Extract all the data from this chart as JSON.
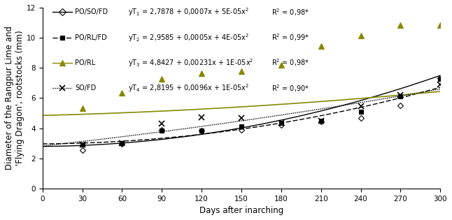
{
  "xlabel": "Days after inarching",
  "ylabel": "Diameter of the Rangpur Lime and\n'Flying Dragon', rootstocks (mm)",
  "xlim": [
    0,
    300
  ],
  "ylim": [
    0,
    12
  ],
  "xticks": [
    0,
    30,
    60,
    90,
    120,
    150,
    180,
    210,
    240,
    270,
    300
  ],
  "yticks": [
    0,
    2,
    4,
    6,
    8,
    10,
    12
  ],
  "series": [
    {
      "label": "PO/SO/FD",
      "eq_text": "yT",
      "eq_sub": "1",
      "eq_rest": " = 2,7878 + 0,0007x + 5E-05x",
      "eq_exp": "2",
      "r2_text": "R",
      "r2_exp": "2",
      "r2_rest": " = 0,98*",
      "a": 2.7878,
      "b": 0.0007,
      "c": 5e-05,
      "marker": "D",
      "markersize": 4.5,
      "color": "black",
      "linestyle": "solid",
      "fillstyle": "none",
      "data_x": [
        30,
        60,
        90,
        120,
        150,
        180,
        210,
        240,
        270,
        300
      ],
      "data_y": [
        2.55,
        2.95,
        3.9,
        3.85,
        3.9,
        4.2,
        4.45,
        4.65,
        5.5,
        7.3
      ]
    },
    {
      "label": "PO/RL/FD",
      "eq_text": "yT",
      "eq_sub": "2",
      "eq_rest": " = 2,9585 + 0,0005x + 4E-05x",
      "eq_exp": "2",
      "r2_text": "R",
      "r2_exp": "2",
      "r2_rest": " = 0,99*",
      "a": 2.9585,
      "b": 0.0005,
      "c": 4e-05,
      "marker": "s",
      "markersize": 4.5,
      "color": "black",
      "linestyle": "dashed",
      "fillstyle": "full",
      "data_x": [
        30,
        60,
        90,
        120,
        150,
        180,
        210,
        240,
        270,
        300
      ],
      "data_y": [
        2.9,
        3.0,
        3.85,
        3.85,
        4.1,
        4.35,
        4.5,
        5.1,
        6.1,
        7.25
      ]
    },
    {
      "label": "PO/RL",
      "eq_text": "yT",
      "eq_sub": "3",
      "eq_rest": " = 4,8427 + 0,00231x + 1E-05x",
      "eq_exp": "2",
      "r2_text": "R",
      "r2_exp": "2",
      "r2_rest": " = 0,98*",
      "a": 4.8427,
      "b": 0.00231,
      "c": 1e-05,
      "marker": "^",
      "markersize": 6,
      "color": "#888800",
      "linestyle": "solid",
      "fillstyle": "full",
      "data_x": [
        30,
        60,
        90,
        120,
        150,
        180,
        210,
        240,
        270,
        300
      ],
      "data_y": [
        5.3,
        6.35,
        7.25,
        7.65,
        7.8,
        8.2,
        9.45,
        10.15,
        10.85,
        10.85
      ]
    },
    {
      "label": "SO/FD",
      "eq_text": "yT",
      "eq_sub": "4",
      "eq_rest": " = 2,8195 + 0,0096x + 1E-05x",
      "eq_exp": "2",
      "r2_text": "R",
      "r2_exp": "2",
      "r2_rest": " = 0,90*",
      "a": 2.8195,
      "b": 0.0096,
      "c": 1e-05,
      "marker": "x",
      "markersize": 6,
      "color": "black",
      "linestyle": "dotted",
      "fillstyle": "full",
      "data_x": [
        30,
        60,
        90,
        120,
        150,
        180,
        210,
        240,
        270,
        300
      ],
      "data_y": [
        2.9,
        3.0,
        4.3,
        4.7,
        4.65,
        4.35,
        4.5,
        5.45,
        6.2,
        6.9
      ]
    }
  ],
  "background_color": "white",
  "legend_fontsize": 7.0,
  "axis_fontsize": 8.5,
  "tick_fontsize": 7.5
}
